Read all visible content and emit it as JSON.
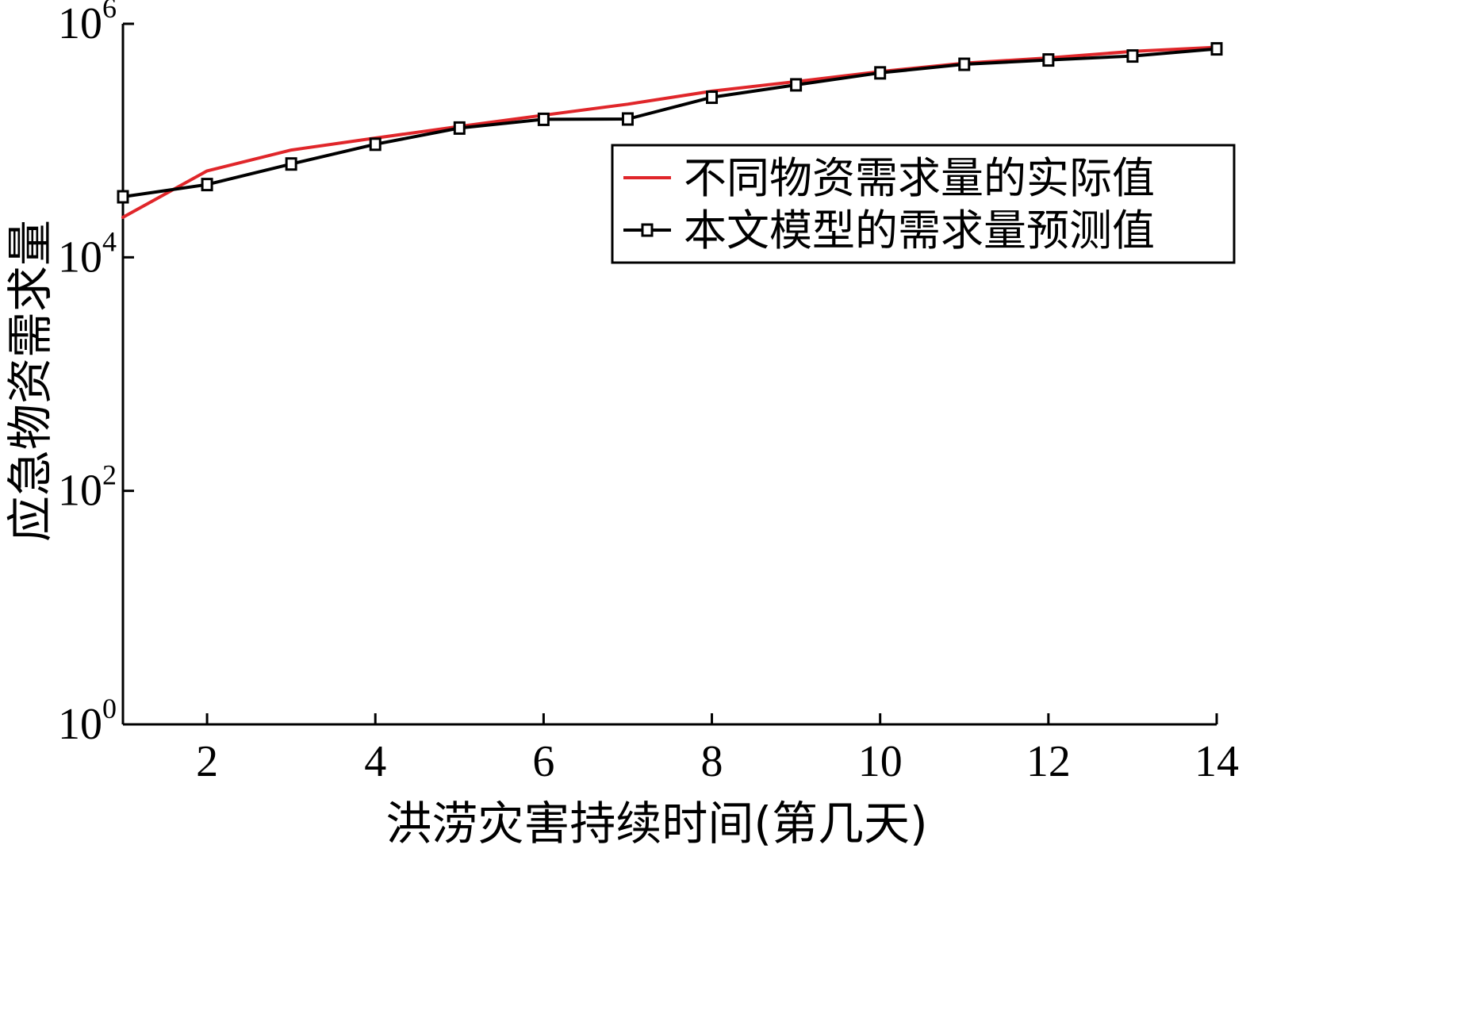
{
  "chart_data": {
    "type": "line",
    "title": "",
    "xlabel": "洪涝灾害持续时间(第几天)",
    "ylabel": "应急物资需求量",
    "x": [
      1,
      2,
      3,
      4,
      5,
      6,
      7,
      8,
      9,
      10,
      11,
      12,
      13,
      14
    ],
    "xlim": [
      1,
      14
    ],
    "xticks": [
      2,
      4,
      6,
      8,
      10,
      12,
      14
    ],
    "yscale": "log",
    "ylim": [
      1,
      1000000
    ],
    "yticks": [
      {
        "base": "10",
        "exp": "0",
        "value": 1
      },
      {
        "base": "10",
        "exp": "2",
        "value": 100
      },
      {
        "base": "10",
        "exp": "4",
        "value": 10000
      },
      {
        "base": "10",
        "exp": "6",
        "value": 1000000
      }
    ],
    "grid": false,
    "legend_position": "top-right",
    "series": [
      {
        "name": "不同物资需求量的实际值",
        "color": "#e0262a",
        "marker": "none",
        "values": [
          22000,
          55000,
          83000,
          105000,
          132000,
          165000,
          205000,
          265000,
          320000,
          390000,
          460000,
          510000,
          580000,
          630000
        ]
      },
      {
        "name": "本文模型的需求量预测值",
        "color": "#000000",
        "marker": "square",
        "values": [
          33000,
          42000,
          63000,
          93000,
          128000,
          152000,
          153000,
          235000,
          300000,
          380000,
          450000,
          490000,
          530000,
          610000
        ]
      }
    ]
  }
}
